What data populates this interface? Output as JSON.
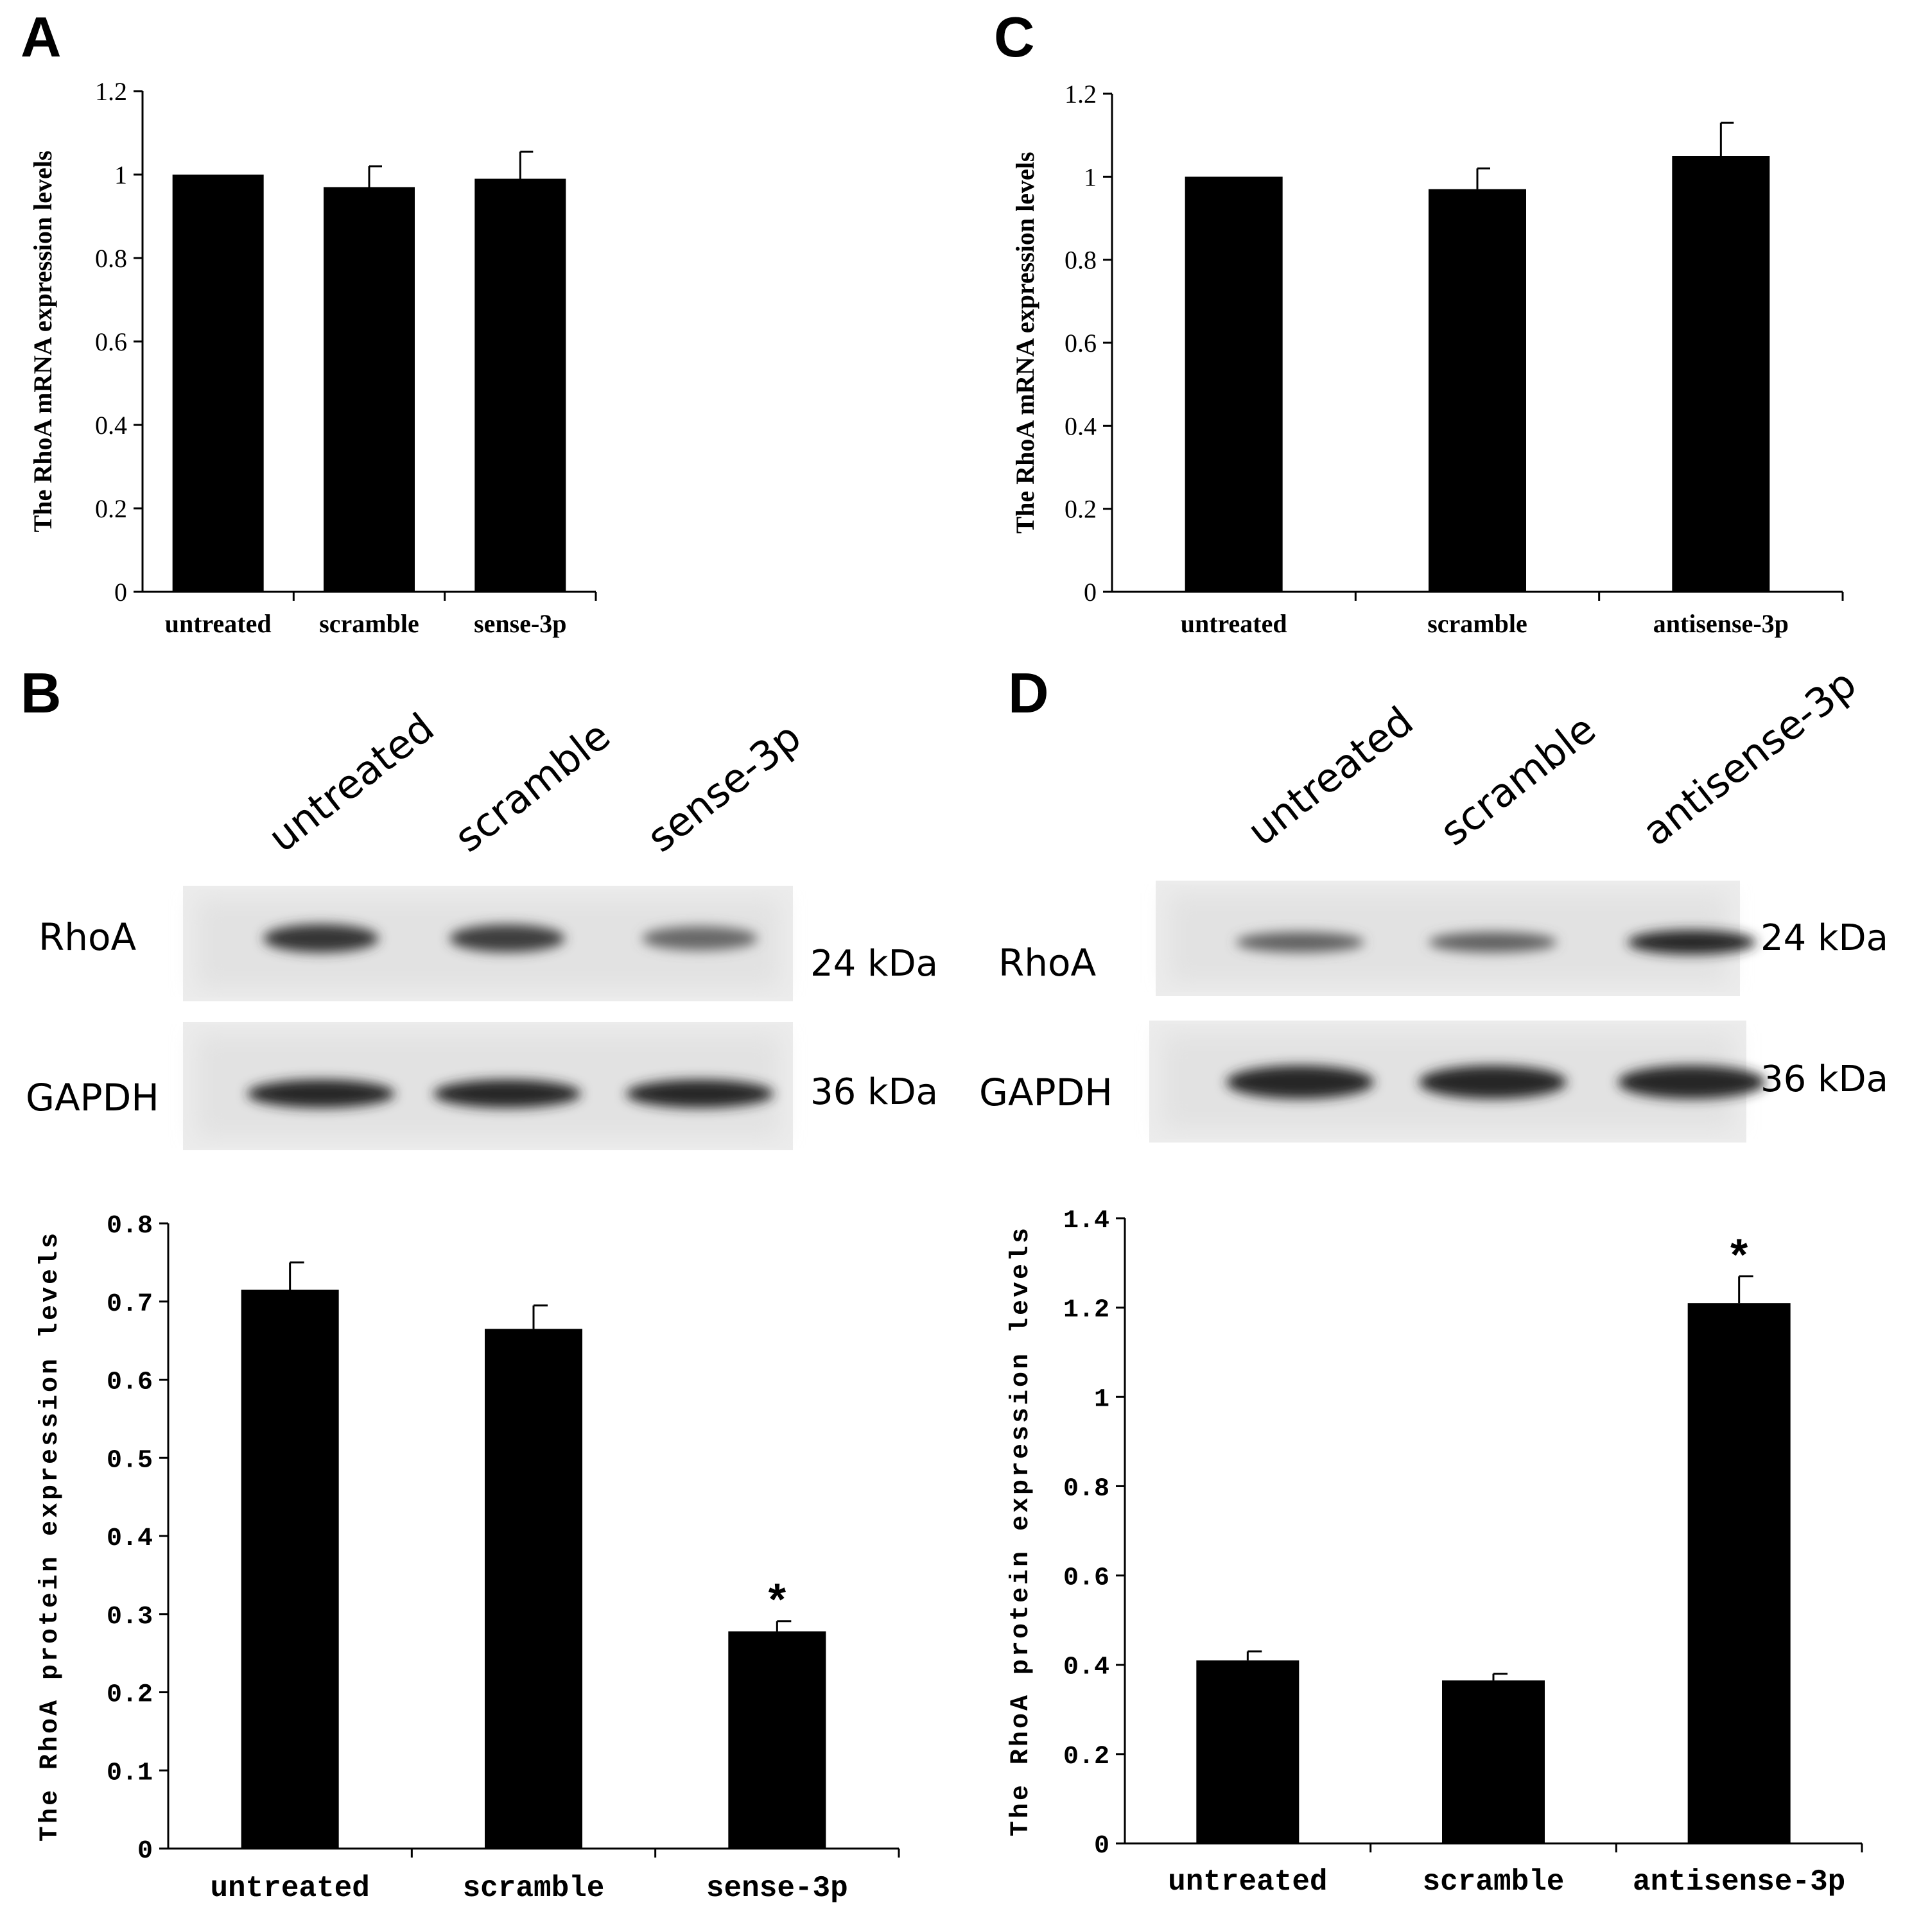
{
  "panels": {
    "A": "A",
    "B": "B",
    "C": "C",
    "D": "D"
  },
  "blots": {
    "B": {
      "lanes": [
        "untreated",
        "scramble",
        "sense-3p"
      ],
      "rows": [
        {
          "label": "RhoA",
          "kda": "24 kDa",
          "intensity": [
            0.9,
            0.85,
            0.55
          ]
        },
        {
          "label": "GAPDH",
          "kda": "36 kDa",
          "intensity": [
            1.0,
            1.0,
            1.0
          ]
        }
      ]
    },
    "D": {
      "lanes": [
        "untreated",
        "scramble",
        "antisense-3p"
      ],
      "rows": [
        {
          "label": "RhoA",
          "kda": "24 kDa",
          "intensity": [
            0.6,
            0.6,
            1.0
          ]
        },
        {
          "label": "GAPDH",
          "kda": "36 kDa",
          "intensity": [
            1.0,
            1.0,
            1.0
          ]
        }
      ]
    }
  },
  "chart_data": [
    {
      "panel": "A",
      "type": "bar",
      "categories": [
        "untreated",
        "scramble",
        "sense-3p"
      ],
      "values": [
        1.0,
        0.97,
        0.99
      ],
      "errors": [
        0,
        0.05,
        0.065
      ],
      "ylabel": "The RhoA mRNA expression levels",
      "ylim": [
        0,
        1.2
      ],
      "yticks": [
        0,
        0.2,
        0.4,
        0.6,
        0.8,
        1,
        1.2
      ],
      "ytick_labels": [
        "0",
        "0.2",
        "0.4",
        "0.6",
        "0.8",
        "1",
        "1.2"
      ],
      "annotations": []
    },
    {
      "panel": "C",
      "type": "bar",
      "categories": [
        "untreated",
        "scramble",
        "antisense-3p"
      ],
      "values": [
        1.0,
        0.97,
        1.05
      ],
      "errors": [
        0,
        0.05,
        0.08
      ],
      "ylabel": "The RhoA mRNA expression levels",
      "ylim": [
        0,
        1.2
      ],
      "yticks": [
        0,
        0.2,
        0.4,
        0.6,
        0.8,
        1,
        1.2
      ],
      "ytick_labels": [
        "0",
        "0.2",
        "0.4",
        "0.6",
        "0.8",
        "1",
        "1.2"
      ],
      "annotations": []
    },
    {
      "panel": "B",
      "type": "bar",
      "categories": [
        "untreated",
        "scramble",
        "sense-3p"
      ],
      "values": [
        0.715,
        0.665,
        0.278
      ],
      "errors": [
        0.035,
        0.03,
        0.013
      ],
      "ylabel": "The RhoA protein expression levels",
      "ylim": [
        0,
        0.8
      ],
      "yticks": [
        0,
        0.1,
        0.2,
        0.3,
        0.4,
        0.5,
        0.6,
        0.7,
        0.8
      ],
      "ytick_labels": [
        "0",
        "0.1",
        "0.2",
        "0.3",
        "0.4",
        "0.5",
        "0.6",
        "0.7",
        "0.8"
      ],
      "annotations": [
        {
          "category": "sense-3p",
          "text": "*"
        }
      ]
    },
    {
      "panel": "D",
      "type": "bar",
      "categories": [
        "untreated",
        "scramble",
        "antisense-3p"
      ],
      "values": [
        0.41,
        0.365,
        1.21
      ],
      "errors": [
        0.02,
        0.015,
        0.06
      ],
      "ylabel": "The RhoA protein expression levels",
      "ylim": [
        0,
        1.4
      ],
      "yticks": [
        0,
        0.2,
        0.4,
        0.6,
        0.8,
        1,
        1.2,
        1.4
      ],
      "ytick_labels": [
        "0",
        "0.2",
        "0.4",
        "0.6",
        "0.8",
        "1",
        "1.2",
        "1.4"
      ],
      "annotations": [
        {
          "category": "antisense-3p",
          "text": "*"
        }
      ]
    }
  ]
}
